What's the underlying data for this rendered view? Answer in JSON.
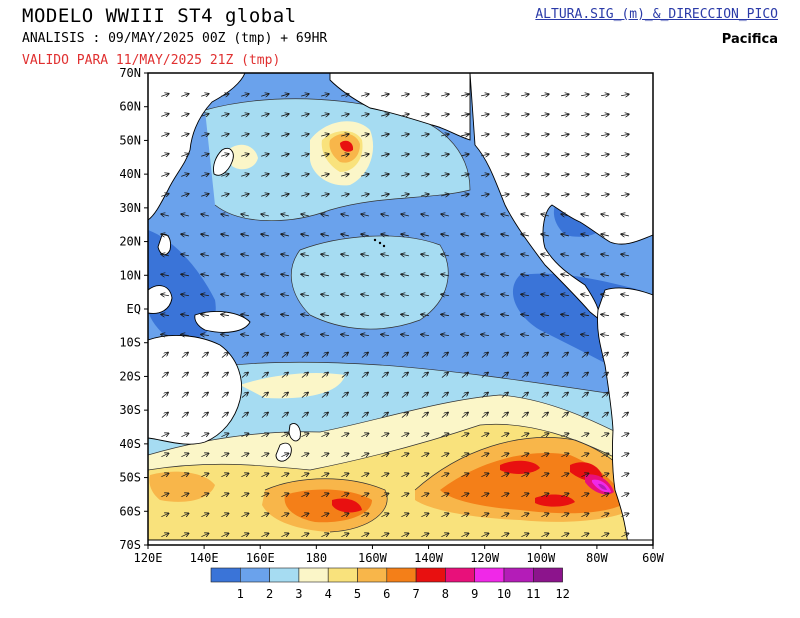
{
  "header": {
    "title": "MODELO WWIII ST4 global",
    "analysis": "ANALISIS : 09/MAY/2025 00Z  (tmp) + 69HR",
    "valid": "VALIDO PARA  11/MAY/2025 21Z  (tmp)",
    "product_link": "ALTURA.SIG_(m)_&_DIRECCION_PICO",
    "region": "Pacifica"
  },
  "map": {
    "lat_labels": [
      "70N",
      "60N",
      "50N",
      "40N",
      "30N",
      "20N",
      "10N",
      "EQ",
      "10S",
      "20S",
      "30S",
      "40S",
      "50S",
      "60S",
      "70S"
    ],
    "lon_labels": [
      "120E",
      "140E",
      "160E",
      "180",
      "160W",
      "140W",
      "120W",
      "100W",
      "80W",
      "60W"
    ]
  },
  "legend": {
    "values": [
      "1",
      "2",
      "3",
      "4",
      "5",
      "6",
      "7",
      "8",
      "9",
      "10",
      "11",
      "12"
    ],
    "colors": [
      "#3a74d8",
      "#6aa2ec",
      "#a6dcf2",
      "#fbf6c8",
      "#f9e27c",
      "#f8b64a",
      "#f47f18",
      "#e81010",
      "#e8107a",
      "#f028e8",
      "#b41cb8",
      "#8c148c"
    ]
  },
  "colors": {
    "land": "#ffffff",
    "low_wave": "#5c8ee0",
    "coast": "#000000"
  }
}
